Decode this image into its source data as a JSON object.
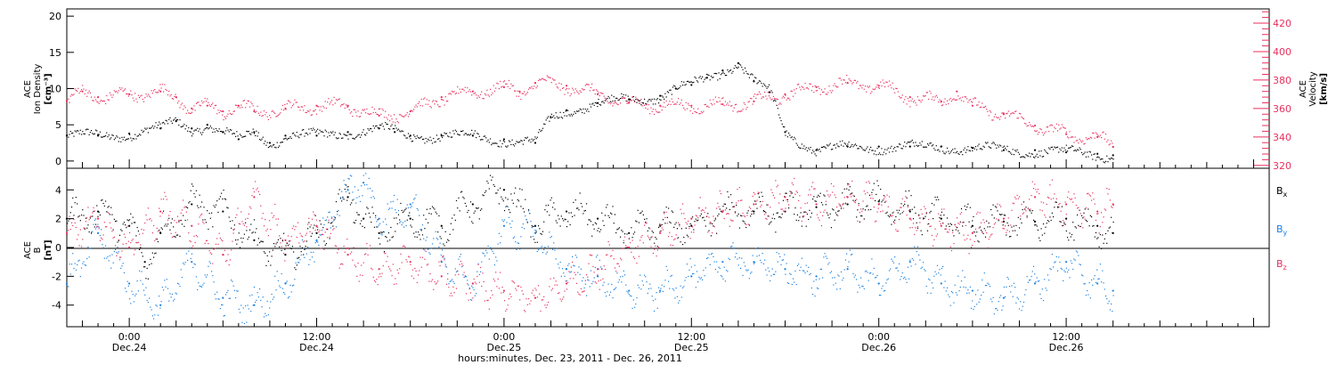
{
  "colors": {
    "axis": "#000000",
    "black": "#000000",
    "velocity": "#e8315f",
    "by": "#1a80e0",
    "bz": "#e8315f"
  },
  "panel1": {
    "ylabel": [
      "ACE",
      "Ion Density",
      "[cm⁻³]"
    ],
    "y2label": [
      "ACE",
      "Velocity",
      "[km/s]"
    ],
    "yticks": [
      "0",
      "5",
      "10",
      "15",
      "20"
    ],
    "y2ticks": [
      "320",
      "340",
      "360",
      "380",
      "400",
      "420"
    ]
  },
  "panel2": {
    "ylabel": [
      "ACE",
      "B",
      "[nT]"
    ],
    "yticks": [
      "-4",
      "-2",
      "0",
      "2",
      "4"
    ],
    "legend": [
      {
        "label": "Bx",
        "color": "#000000"
      },
      {
        "label": "By",
        "color": "#1a80e0"
      },
      {
        "label": "Bz",
        "color": "#e8315f"
      }
    ]
  },
  "xaxis": {
    "ticks": [
      {
        "hours": 4,
        "time": "0:00",
        "date": "Dec.24"
      },
      {
        "hours": 16,
        "time": "12:00",
        "date": "Dec.24"
      },
      {
        "hours": 28,
        "time": "0:00",
        "date": "Dec.25"
      },
      {
        "hours": 40,
        "time": "12:00",
        "date": "Dec.25"
      },
      {
        "hours": 52,
        "time": "0:00",
        "date": "Dec.26"
      },
      {
        "hours": 64,
        "time": "12:00",
        "date": "Dec.26"
      }
    ],
    "title": "hours:minutes, Dec. 23, 2011 - Dec. 26, 2011"
  },
  "chart_data": [
    {
      "type": "scatter",
      "title": "",
      "xlabel": "hours:minutes, Dec. 23, 2011 - Dec. 26, 2011",
      "ylabel": "ACE Ion Density [cm⁻³]",
      "y2label": "ACE Velocity [km/s]",
      "xlim": [
        0,
        77
      ],
      "ylim": [
        -1,
        21
      ],
      "y2lim": [
        318,
        430
      ],
      "series": [
        {
          "name": "Ion Density",
          "axis": "left",
          "color": "#000000",
          "x": [
            0,
            2,
            4,
            6,
            7,
            8,
            9,
            10,
            11,
            12,
            13,
            14,
            16,
            18,
            20,
            21,
            22,
            24,
            26,
            28,
            30,
            31,
            32,
            34,
            36,
            38,
            39,
            40,
            41,
            42,
            43,
            44,
            45,
            46,
            48,
            50,
            52,
            54,
            56,
            58,
            60,
            62,
            64,
            66,
            67
          ],
          "values": [
            3.5,
            3.5,
            3.8,
            4.5,
            5.5,
            4.5,
            5.0,
            4.0,
            3.0,
            4.0,
            2.5,
            3.5,
            3.5,
            4.0,
            4.5,
            4.0,
            3.5,
            3.5,
            3.5,
            3.0,
            2.5,
            6.0,
            7.0,
            8.0,
            8.5,
            9.0,
            10.0,
            10.5,
            11.5,
            12.5,
            13.5,
            11.0,
            9.5,
            4.0,
            1.5,
            2.0,
            2.0,
            2.0,
            2.0,
            1.8,
            1.5,
            1.5,
            1.2,
            1.0,
            0.8
          ]
        },
        {
          "name": "Velocity",
          "axis": "right",
          "color": "#e8315f",
          "x": [
            0,
            1,
            2,
            4,
            6,
            7,
            8,
            9,
            10,
            11,
            12,
            14,
            16,
            18,
            20,
            22,
            24,
            26,
            28,
            29,
            30,
            32,
            34,
            36,
            38,
            40,
            42,
            44,
            46,
            48,
            50,
            52,
            54,
            56,
            57,
            58,
            60,
            62,
            64,
            66,
            67
          ],
          "values": [
            365,
            372,
            368,
            370,
            372,
            368,
            360,
            362,
            358,
            362,
            358,
            360,
            362,
            362,
            355,
            358,
            368,
            372,
            375,
            372,
            378,
            376,
            370,
            364,
            362,
            362,
            363,
            365,
            370,
            375,
            378,
            376,
            368,
            365,
            372,
            362,
            356,
            348,
            342,
            340,
            333
          ]
        }
      ]
    },
    {
      "type": "scatter",
      "title": "",
      "xlabel": "hours:minutes, Dec. 23, 2011 - Dec. 26, 2011",
      "ylabel": "ACE B [nT]",
      "xlim": [
        0,
        77
      ],
      "ylim": [
        -5.5,
        5.5
      ],
      "series": [
        {
          "name": "Bx",
          "color": "#000000",
          "x": [
            0,
            2,
            4,
            5,
            6,
            8,
            10,
            12,
            14,
            16,
            18,
            19,
            20,
            22,
            24,
            26,
            28,
            30,
            32,
            34,
            36,
            38,
            40,
            42,
            44,
            46,
            48,
            50,
            52,
            54,
            56,
            58,
            60,
            62,
            64,
            66,
            67
          ],
          "values": [
            2.0,
            2.5,
            1.5,
            -1.0,
            1.0,
            3.0,
            2.5,
            0.5,
            -0.5,
            1.0,
            3.5,
            2.0,
            1.0,
            2.0,
            1.5,
            3.0,
            4.0,
            1.5,
            2.5,
            2.0,
            1.0,
            1.5,
            1.5,
            2.5,
            2.5,
            2.5,
            2.8,
            3.0,
            3.2,
            2.5,
            2.0,
            1.5,
            1.8,
            1.8,
            2.0,
            1.5,
            1.0
          ]
        },
        {
          "name": "By",
          "color": "#1a80e0",
          "x": [
            0,
            2,
            4,
            6,
            8,
            10,
            12,
            14,
            16,
            18,
            19,
            20,
            22,
            24,
            26,
            28,
            30,
            32,
            34,
            36,
            38,
            40,
            42,
            44,
            46,
            48,
            50,
            52,
            54,
            56,
            58,
            60,
            62,
            64,
            66,
            67
          ],
          "values": [
            -2.5,
            1.0,
            -2.5,
            -4.0,
            -1.0,
            -3.5,
            -4.0,
            -2.5,
            0.5,
            4.0,
            4.5,
            2.0,
            3.0,
            -1.0,
            -2.5,
            1.5,
            1.0,
            -1.5,
            -2.0,
            -3.0,
            -3.0,
            -2.0,
            -1.0,
            -1.0,
            -1.5,
            -2.0,
            -1.5,
            -2.5,
            -1.0,
            -2.5,
            -3.0,
            -3.5,
            -2.5,
            -1.0,
            -2.5,
            -3.0
          ]
        },
        {
          "name": "Bz",
          "color": "#e8315f",
          "x": [
            0,
            2,
            4,
            6,
            8,
            10,
            12,
            14,
            16,
            18,
            20,
            22,
            24,
            26,
            28,
            30,
            32,
            34,
            36,
            38,
            40,
            42,
            44,
            46,
            48,
            50,
            52,
            54,
            56,
            58,
            60,
            62,
            64,
            66,
            67
          ],
          "values": [
            1.0,
            2.0,
            0.0,
            2.5,
            1.5,
            -0.5,
            3.5,
            0.5,
            1.5,
            -0.5,
            -1.5,
            -1.0,
            -2.0,
            -2.5,
            -3.0,
            -3.5,
            -2.5,
            -1.5,
            0.0,
            1.0,
            2.0,
            2.5,
            3.0,
            3.5,
            3.0,
            3.5,
            3.0,
            2.0,
            1.5,
            1.0,
            2.0,
            3.5,
            3.0,
            2.5,
            3.0
          ]
        }
      ]
    }
  ]
}
